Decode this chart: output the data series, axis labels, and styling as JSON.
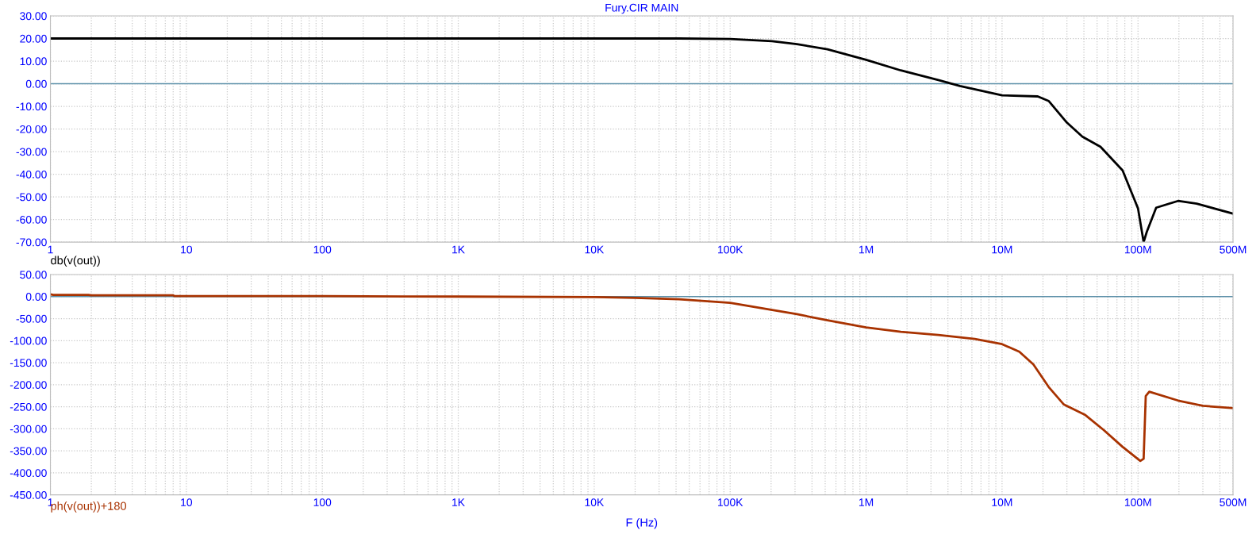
{
  "chart_data": [
    {
      "type": "line",
      "title": "Fury.CIR MAIN",
      "annotations": [
        "db(v(out))"
      ],
      "log": "x",
      "grid": true,
      "xlim": [
        1,
        500000000
      ],
      "xticks": [
        1,
        10,
        100,
        {
          "value": 1000,
          "label": "1K"
        },
        {
          "value": 10000,
          "label": "10K"
        },
        {
          "value": 100000,
          "label": "100K"
        },
        {
          "value": 1000000,
          "label": "1M"
        },
        {
          "value": 10000000,
          "label": "10M"
        },
        {
          "value": 100000000,
          "label": "100M"
        },
        {
          "value": 500000000,
          "label": "500M"
        }
      ],
      "ylim": [
        -70,
        30
      ],
      "yticks": [
        {
          "value": 30,
          "label": "30.00"
        },
        {
          "value": 20,
          "label": "20.00"
        },
        {
          "value": 10,
          "label": "10.00"
        },
        {
          "value": 0,
          "label": "0.00"
        },
        {
          "value": -10,
          "label": "-10.00"
        },
        {
          "value": -20,
          "label": "-20.00"
        },
        {
          "value": -30,
          "label": "-30.00"
        },
        {
          "value": -40,
          "label": "-40.00"
        },
        {
          "value": -50,
          "label": "-50.00"
        },
        {
          "value": -60,
          "label": "-60.00"
        },
        {
          "value": -70,
          "label": "-70.00"
        }
      ],
      "ref_lines": [
        {
          "axis": "y",
          "value": 0,
          "color": "#5b8fa8"
        }
      ],
      "series": [
        {
          "color": "#000000",
          "x": [
            1,
            10,
            100,
            1000,
            10000,
            42000,
            100000,
            203000,
            310000,
            520000,
            1000000,
            1800000,
            3400000,
            4900000,
            10000000,
            18300000,
            22000000,
            30000000,
            39000000,
            53000000,
            77000000,
            100000000,
            110000000,
            116000000,
            136000000,
            197000000,
            270000000,
            500000000
          ],
          "values": [
            20,
            20,
            20,
            20,
            20,
            20,
            19.8,
            18.8,
            17.5,
            15.2,
            10.6,
            5.9,
            1.6,
            -1,
            -5.1,
            -5.6,
            -7.6,
            -17.2,
            -23.4,
            -27.9,
            -38.3,
            -55.1,
            -70,
            -65.5,
            -54.8,
            -51.8,
            -53,
            -57.4
          ]
        }
      ]
    },
    {
      "type": "line",
      "annotations": [
        "ph(v(out))+180"
      ],
      "xlabel": "F (Hz)",
      "log": "x",
      "grid": true,
      "xlim": [
        1,
        500000000
      ],
      "xticks": [
        1,
        10,
        100,
        {
          "value": 1000,
          "label": "1K"
        },
        {
          "value": 10000,
          "label": "10K"
        },
        {
          "value": 100000,
          "label": "100K"
        },
        {
          "value": 1000000,
          "label": "1M"
        },
        {
          "value": 10000000,
          "label": "10M"
        },
        {
          "value": 100000000,
          "label": "100M"
        },
        {
          "value": 500000000,
          "label": "500M"
        }
      ],
      "ylim": [
        -450,
        50
      ],
      "yticks": [
        {
          "value": 50,
          "label": "50.00"
        },
        {
          "value": 0,
          "label": "0.00"
        },
        {
          "value": -50,
          "label": "-50.00"
        },
        {
          "value": -100,
          "label": "-100.00"
        },
        {
          "value": -150,
          "label": "-150.00"
        },
        {
          "value": -200,
          "label": "-200.00"
        },
        {
          "value": -250,
          "label": "-250.00"
        },
        {
          "value": -300,
          "label": "-300.00"
        },
        {
          "value": -350,
          "label": "-350.00"
        },
        {
          "value": -400,
          "label": "-400.00"
        },
        {
          "value": -450,
          "label": "-450.00"
        }
      ],
      "ref_lines": [
        {
          "axis": "y",
          "value": 0,
          "color": "#5b8fa8"
        }
      ],
      "series": [
        {
          "color": "#a83200",
          "x": [
            1,
            1.05,
            1.9,
            2,
            8,
            8.2,
            100,
            1000,
            10000,
            20000,
            42000,
            100000,
            200000,
            310000,
            520000,
            1000000,
            1800000,
            3400000,
            6300000,
            10000000,
            13400000,
            17000000,
            22000000,
            28500000,
            41000000,
            56000000,
            77000000,
            104000000,
            110000000,
            114000000,
            121000000,
            197000000,
            300000000,
            500000000
          ],
          "values": [
            5,
            4,
            4,
            3,
            3,
            1,
            1,
            0,
            -1,
            -3,
            -6,
            -14,
            -30,
            -40,
            -54,
            -70,
            -80,
            -87,
            -96,
            -108,
            -125,
            -154,
            -205,
            -245,
            -269,
            -303,
            -341,
            -373,
            -368,
            -226,
            -216,
            -236,
            -248,
            -253
          ]
        }
      ]
    }
  ]
}
